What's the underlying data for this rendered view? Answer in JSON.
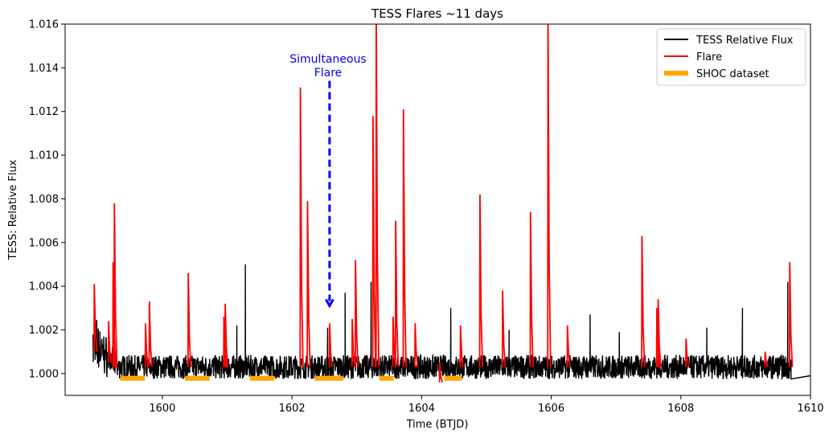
{
  "chart_data": {
    "type": "line",
    "title": "TESS Flares ~11 days",
    "xlabel": "Time (BTJD)",
    "ylabel": "TESS: Relative Flux",
    "xlim": [
      1598.5,
      1610.0
    ],
    "ylim": [
      0.999,
      1.016
    ],
    "x_ticks": [
      1600,
      1602,
      1604,
      1606,
      1608,
      1610
    ],
    "x_tick_labels": [
      "1600",
      "1602",
      "1604",
      "1606",
      "1608",
      "1610"
    ],
    "y_ticks": [
      1.0,
      1.002,
      1.004,
      1.006,
      1.008,
      1.01,
      1.012,
      1.014,
      1.016
    ],
    "y_tick_labels": [
      "1.000",
      "1.002",
      "1.004",
      "1.006",
      "1.008",
      "1.010",
      "1.012",
      "1.014",
      "1.016"
    ],
    "grid": false,
    "legend_position": "top-right",
    "colors": {
      "tess": "#000000",
      "flare": "#ff0000",
      "shoc": "#ffa500",
      "annotation": "#0000ff"
    },
    "series": [
      {
        "name": "TESS Relative Flux",
        "color": "#000000",
        "baseline": 1.0003,
        "noise_amplitude": 0.0011,
        "start": 1598.93,
        "end": 1609.7,
        "tail_x": [
          1609.7,
          1610.0
        ],
        "tail_y": [
          0.99975,
          0.9999
        ],
        "spikes": [
          {
            "x": 1601.28,
            "y": 1.005
          },
          {
            "x": 1602.82,
            "y": 1.0037
          },
          {
            "x": 1603.3,
            "y": 1.0067
          },
          {
            "x": 1603.22,
            "y": 1.0042
          },
          {
            "x": 1604.45,
            "y": 1.003
          },
          {
            "x": 1606.6,
            "y": 1.0027
          },
          {
            "x": 1608.95,
            "y": 1.003
          },
          {
            "x": 1609.65,
            "y": 1.0042
          },
          {
            "x": 1601.15,
            "y": 1.0022
          },
          {
            "x": 1602.55,
            "y": 1.0021
          },
          {
            "x": 1605.35,
            "y": 1.002
          },
          {
            "x": 1608.4,
            "y": 1.0021
          },
          {
            "x": 1607.05,
            "y": 1.0019
          }
        ]
      },
      {
        "name": "Flare",
        "color": "#ff0000",
        "flares": [
          {
            "x": 1598.95,
            "peak": 1.0041,
            "base": 1.001
          },
          {
            "x": 1599.17,
            "peak": 1.0024,
            "base": 1.0005
          },
          {
            "x": 1599.26,
            "peak": 1.0078,
            "base": 1.0003
          },
          {
            "x": 1599.24,
            "peak": 1.0051,
            "base": 1.0003
          },
          {
            "x": 1599.74,
            "peak": 1.0023,
            "base": 1.0003
          },
          {
            "x": 1599.8,
            "peak": 1.0033,
            "base": 1.0003
          },
          {
            "x": 1600.4,
            "peak": 1.0046,
            "base": 1.0003
          },
          {
            "x": 1600.97,
            "peak": 1.0032,
            "base": 1.0003
          },
          {
            "x": 1600.95,
            "peak": 1.0026,
            "base": 1.0003
          },
          {
            "x": 1602.13,
            "peak": 1.0131,
            "base": 1.0003
          },
          {
            "x": 1602.24,
            "peak": 1.0079,
            "base": 1.0003
          },
          {
            "x": 1602.58,
            "peak": 1.0023,
            "base": 1.0003
          },
          {
            "x": 1602.98,
            "peak": 1.0052,
            "base": 1.0003
          },
          {
            "x": 1602.93,
            "peak": 1.0025,
            "base": 1.0003
          },
          {
            "x": 1603.25,
            "peak": 1.0118,
            "base": 1.0003
          },
          {
            "x": 1603.3,
            "peak": 1.0165,
            "base": 1.0003
          },
          {
            "x": 1603.56,
            "peak": 1.0026,
            "base": 1.0003
          },
          {
            "x": 1603.6,
            "peak": 1.007,
            "base": 1.0003
          },
          {
            "x": 1603.72,
            "peak": 1.0121,
            "base": 1.0003
          },
          {
            "x": 1603.9,
            "peak": 1.0023,
            "base": 1.0003
          },
          {
            "x": 1604.28,
            "peak": 1.0005,
            "base": 0.9996
          },
          {
            "x": 1604.6,
            "peak": 1.0022,
            "base": 1.0003
          },
          {
            "x": 1604.9,
            "peak": 1.0082,
            "base": 1.0003
          },
          {
            "x": 1605.25,
            "peak": 1.0038,
            "base": 1.0003
          },
          {
            "x": 1605.68,
            "peak": 1.0074,
            "base": 1.0003
          },
          {
            "x": 1605.95,
            "peak": 1.0165,
            "base": 1.0003
          },
          {
            "x": 1606.25,
            "peak": 1.0022,
            "base": 1.0003
          },
          {
            "x": 1607.4,
            "peak": 1.0063,
            "base": 1.0003
          },
          {
            "x": 1607.65,
            "peak": 1.0034,
            "base": 1.0003
          },
          {
            "x": 1607.63,
            "peak": 1.003,
            "base": 1.0003
          },
          {
            "x": 1608.08,
            "peak": 1.0016,
            "base": 1.0003
          },
          {
            "x": 1609.3,
            "peak": 1.001,
            "base": 1.0003
          },
          {
            "x": 1609.68,
            "peak": 1.0051,
            "base": 1.0003
          }
        ]
      },
      {
        "name": "SHOC dataset",
        "color": "#ffa500",
        "y": 0.99978,
        "segments": [
          [
            1599.35,
            1599.73
          ],
          [
            1600.35,
            1600.73
          ],
          [
            1601.35,
            1601.73
          ],
          [
            1602.35,
            1602.79
          ],
          [
            1603.35,
            1603.57
          ],
          [
            1604.35,
            1604.62
          ]
        ]
      }
    ],
    "annotation": {
      "text_line1": "Simultaneous",
      "text_line2": "Flare",
      "arrow_x": 1602.58,
      "arrow_from_y": 1.0134,
      "arrow_to_y": 1.0031
    }
  }
}
